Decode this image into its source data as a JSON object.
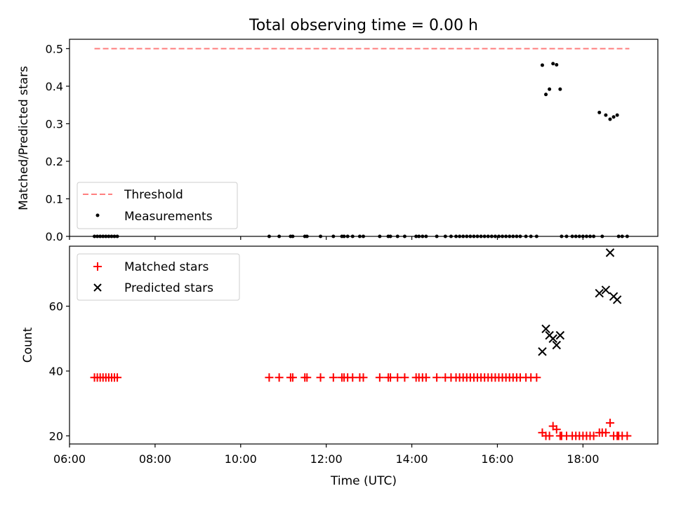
{
  "chart_data": {
    "type": "scatter",
    "title": "Total observing time = 0.00 h",
    "colors": {
      "threshold": "#ff7f7f",
      "measurement": "#000000",
      "matched": "#ff0000",
      "predicted": "#000000"
    },
    "xlabel": "Time (UTC)",
    "xlim": [
      "06:00",
      "19:45"
    ],
    "xticks": [
      "06:00",
      "08:00",
      "10:00",
      "12:00",
      "14:00",
      "16:00",
      "18:00"
    ],
    "top": {
      "ylabel": "Matched/Predicted stars",
      "ylim": [
        0,
        0.525
      ],
      "yticks": [
        "0.0",
        "0.1",
        "0.2",
        "0.3",
        "0.4",
        "0.5"
      ],
      "legend_position": "lower-left",
      "threshold": {
        "name": "Threshold",
        "value": 0.5,
        "x_range": [
          "06:35",
          "19:05"
        ]
      },
      "measurements": {
        "name": "Measurements",
        "points": [
          [
            "06:35",
            0
          ],
          [
            "06:39",
            0
          ],
          [
            "06:43",
            0
          ],
          [
            "06:47",
            0
          ],
          [
            "06:51",
            0
          ],
          [
            "06:55",
            0
          ],
          [
            "06:59",
            0
          ],
          [
            "07:03",
            0
          ],
          [
            "07:07",
            0
          ],
          [
            "10:40",
            0
          ],
          [
            "10:54",
            0
          ],
          [
            "11:10",
            0
          ],
          [
            "11:13",
            0
          ],
          [
            "11:30",
            0
          ],
          [
            "11:33",
            0
          ],
          [
            "11:52",
            0
          ],
          [
            "12:10",
            0
          ],
          [
            "12:22",
            0
          ],
          [
            "12:25",
            0
          ],
          [
            "12:30",
            0
          ],
          [
            "12:37",
            0
          ],
          [
            "12:47",
            0
          ],
          [
            "12:52",
            0
          ],
          [
            "13:15",
            0
          ],
          [
            "13:27",
            0
          ],
          [
            "13:30",
            0
          ],
          [
            "13:40",
            0
          ],
          [
            "13:50",
            0
          ],
          [
            "14:06",
            0
          ],
          [
            "14:10",
            0
          ],
          [
            "14:15",
            0
          ],
          [
            "14:20",
            0
          ],
          [
            "14:35",
            0
          ],
          [
            "14:47",
            0
          ],
          [
            "14:55",
            0
          ],
          [
            "15:02",
            0
          ],
          [
            "15:07",
            0
          ],
          [
            "15:12",
            0
          ],
          [
            "15:17",
            0
          ],
          [
            "15:22",
            0
          ],
          [
            "15:27",
            0
          ],
          [
            "15:32",
            0
          ],
          [
            "15:37",
            0
          ],
          [
            "15:42",
            0
          ],
          [
            "15:47",
            0
          ],
          [
            "15:52",
            0
          ],
          [
            "15:57",
            0
          ],
          [
            "16:02",
            0
          ],
          [
            "16:07",
            0
          ],
          [
            "16:12",
            0
          ],
          [
            "16:17",
            0
          ],
          [
            "16:22",
            0
          ],
          [
            "16:27",
            0
          ],
          [
            "16:32",
            0
          ],
          [
            "16:40",
            0
          ],
          [
            "16:47",
            0
          ],
          [
            "16:55",
            0
          ],
          [
            "17:03",
            0.456
          ],
          [
            "17:08",
            0.378
          ],
          [
            "17:13",
            0.392
          ],
          [
            "17:18",
            0.46
          ],
          [
            "17:23",
            0.457
          ],
          [
            "17:28",
            0.392
          ],
          [
            "17:30",
            0
          ],
          [
            "17:37",
            0
          ],
          [
            "17:45",
            0
          ],
          [
            "17:50",
            0
          ],
          [
            "17:55",
            0
          ],
          [
            "18:00",
            0
          ],
          [
            "18:05",
            0
          ],
          [
            "18:10",
            0
          ],
          [
            "18:15",
            0
          ],
          [
            "18:27",
            0
          ],
          [
            "18:23",
            0.33
          ],
          [
            "18:32",
            0.323
          ],
          [
            "18:38",
            0.312
          ],
          [
            "18:43",
            0.318
          ],
          [
            "18:48",
            0.323
          ],
          [
            "18:50",
            0
          ],
          [
            "18:55",
            0
          ],
          [
            "19:02",
            0
          ]
        ]
      }
    },
    "bottom": {
      "ylabel": "Count",
      "ylim": [
        17.5,
        78.5
      ],
      "yticks": [
        "20",
        "40",
        "60"
      ],
      "legend_position": "upper-left",
      "matched": {
        "name": "Matched stars",
        "points": [
          [
            "06:35",
            38
          ],
          [
            "06:39",
            38
          ],
          [
            "06:43",
            38
          ],
          [
            "06:47",
            38
          ],
          [
            "06:51",
            38
          ],
          [
            "06:55",
            38
          ],
          [
            "06:59",
            38
          ],
          [
            "07:03",
            38
          ],
          [
            "07:07",
            38
          ],
          [
            "10:40",
            38
          ],
          [
            "10:54",
            38
          ],
          [
            "11:10",
            38
          ],
          [
            "11:13",
            38
          ],
          [
            "11:30",
            38
          ],
          [
            "11:33",
            38
          ],
          [
            "11:52",
            38
          ],
          [
            "12:10",
            38
          ],
          [
            "12:22",
            38
          ],
          [
            "12:25",
            38
          ],
          [
            "12:30",
            38
          ],
          [
            "12:37",
            38
          ],
          [
            "12:47",
            38
          ],
          [
            "12:52",
            38
          ],
          [
            "13:15",
            38
          ],
          [
            "13:27",
            38
          ],
          [
            "13:30",
            38
          ],
          [
            "13:40",
            38
          ],
          [
            "13:50",
            38
          ],
          [
            "14:06",
            38
          ],
          [
            "14:10",
            38
          ],
          [
            "14:15",
            38
          ],
          [
            "14:20",
            38
          ],
          [
            "14:35",
            38
          ],
          [
            "14:47",
            38
          ],
          [
            "14:55",
            38
          ],
          [
            "15:02",
            38
          ],
          [
            "15:07",
            38
          ],
          [
            "15:12",
            38
          ],
          [
            "15:17",
            38
          ],
          [
            "15:22",
            38
          ],
          [
            "15:27",
            38
          ],
          [
            "15:32",
            38
          ],
          [
            "15:37",
            38
          ],
          [
            "15:42",
            38
          ],
          [
            "15:47",
            38
          ],
          [
            "15:52",
            38
          ],
          [
            "15:57",
            38
          ],
          [
            "16:02",
            38
          ],
          [
            "16:07",
            38
          ],
          [
            "16:12",
            38
          ],
          [
            "16:17",
            38
          ],
          [
            "16:22",
            38
          ],
          [
            "16:27",
            38
          ],
          [
            "16:32",
            38
          ],
          [
            "16:40",
            38
          ],
          [
            "16:47",
            38
          ],
          [
            "16:55",
            38
          ],
          [
            "17:03",
            21
          ],
          [
            "17:08",
            20
          ],
          [
            "17:13",
            20
          ],
          [
            "17:18",
            23
          ],
          [
            "17:23",
            22
          ],
          [
            "17:28",
            20
          ],
          [
            "17:30",
            20
          ],
          [
            "17:37",
            20
          ],
          [
            "17:45",
            20
          ],
          [
            "17:50",
            20
          ],
          [
            "17:55",
            20
          ],
          [
            "18:00",
            20
          ],
          [
            "18:05",
            20
          ],
          [
            "18:10",
            20
          ],
          [
            "18:15",
            20
          ],
          [
            "18:27",
            21
          ],
          [
            "18:23",
            21
          ],
          [
            "18:32",
            21
          ],
          [
            "18:38",
            24
          ],
          [
            "18:43",
            20
          ],
          [
            "18:48",
            20
          ],
          [
            "18:50",
            20
          ],
          [
            "18:55",
            20
          ],
          [
            "19:02",
            20
          ]
        ]
      },
      "predicted": {
        "name": "Predicted stars",
        "points": [
          [
            "17:03",
            46
          ],
          [
            "17:08",
            53
          ],
          [
            "17:13",
            51
          ],
          [
            "17:18",
            50
          ],
          [
            "17:23",
            48
          ],
          [
            "17:28",
            51
          ],
          [
            "18:23",
            64
          ],
          [
            "18:32",
            65
          ],
          [
            "18:38",
            76.5
          ],
          [
            "18:43",
            63
          ],
          [
            "18:48",
            62
          ]
        ]
      }
    }
  }
}
